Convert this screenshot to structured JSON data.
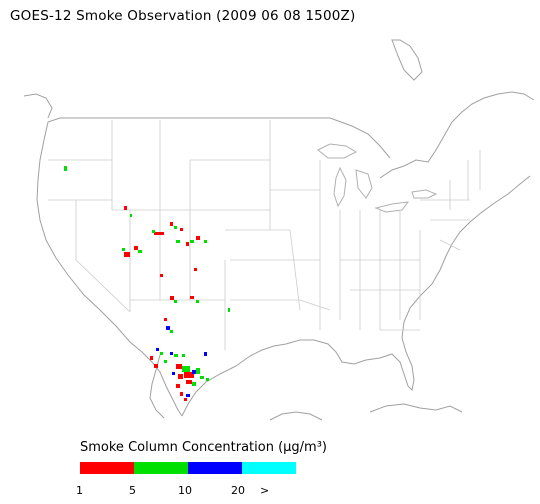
{
  "title": "GOES-12 Smoke Observation (2009 06 08  1500Z)",
  "legend": {
    "title": "Smoke Column Concentration (μg/m³)",
    "bins": [
      {
        "label": "1",
        "color": "#ff0000"
      },
      {
        "label": "5",
        "color": "#00e000"
      },
      {
        "label": "10",
        "color": "#0000ff"
      },
      {
        "label": "20",
        "color": "#00ffff"
      }
    ],
    "overflow_label": ">"
  },
  "colors": {
    "state_border": "#c8c8c8",
    "coast": "#a0a0a0"
  }
}
